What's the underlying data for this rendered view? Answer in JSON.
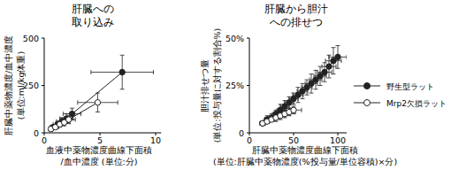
{
  "chart_data": [
    {
      "type": "line",
      "title": "肝臓への\n取り込み",
      "x_label": "血液中薬物濃度曲線下面積\n/血中濃度 (単位:分)",
      "y_label": "肝臓中薬物濃度/血中濃度\n(単位:ml/kg体重)",
      "xlim": [
        0,
        10.5
      ],
      "xticks": [
        0,
        5,
        10
      ],
      "ylim": [
        0,
        500
      ],
      "yticks": [
        0,
        250,
        500
      ],
      "series": [
        {
          "color": "#222222",
          "marker": "circle",
          "x": [
            0.8,
            1.2,
            1.6,
            2.0,
            2.5,
            7.0
          ],
          "values": [
            30,
            45,
            60,
            75,
            100,
            320
          ],
          "x_errors": [
            0.3,
            0.4,
            0.5,
            0.6,
            0.8,
            2.8
          ],
          "errors": [
            10,
            15,
            20,
            25,
            30,
            90
          ]
        },
        {
          "color": "#222222",
          "marker": "open_circle",
          "x": [
            0.6,
            1.0,
            1.4,
            1.8,
            2.2,
            4.8
          ],
          "values": [
            20,
            30,
            45,
            55,
            70,
            160
          ],
          "x_errors": [
            0.2,
            0.3,
            0.4,
            0.5,
            0.6,
            1.8
          ],
          "errors": [
            8,
            10,
            15,
            18,
            20,
            50
          ]
        }
      ]
    },
    {
      "type": "line",
      "title": "肝臓から胆汁\nへの排せつ",
      "x_label": "肝臓中薬物濃度曲線下面積\n(単位:肝臓中薬物濃度(%投与量/単位容積)×分)",
      "y_label": "胆汁排せつ量\n(単位:投与量に対する割合%)",
      "xlim": [
        0,
        110
      ],
      "xticks": [
        0,
        50,
        100
      ],
      "ylim": [
        0,
        50
      ],
      "yticks": [
        0,
        {
          "value": 25,
          "label": "25%"
        },
        {
          "value": 50,
          "label": "50%"
        }
      ],
      "legend": "right",
      "series": [
        {
          "name": "野生型ラット",
          "color": "#222222",
          "marker": "circle",
          "x": [
            15,
            20,
            25,
            30,
            35,
            40,
            45,
            50,
            55,
            60,
            65,
            70,
            75,
            80,
            85,
            90,
            95,
            100
          ],
          "values": [
            5,
            7,
            8,
            10,
            12,
            14,
            16,
            18,
            20,
            22,
            24,
            26,
            28,
            30,
            32,
            35,
            38,
            40
          ],
          "x_errors": [
            3,
            3,
            4,
            4,
            4,
            5,
            5,
            5,
            6,
            6,
            6,
            7,
            7,
            7,
            8,
            8,
            9,
            10
          ],
          "errors": [
            1,
            2,
            2,
            2,
            3,
            3,
            3,
            3,
            4,
            4,
            4,
            5,
            5,
            5,
            5,
            6,
            7,
            6
          ]
        },
        {
          "name": "Mrp2欠損ラット",
          "color": "#222222",
          "marker": "open_circle",
          "x": [
            15,
            20,
            25,
            30,
            35,
            40,
            45,
            50
          ],
          "values": [
            5,
            6,
            7,
            8,
            9,
            10,
            11,
            12
          ],
          "x_errors": [
            3,
            3,
            4,
            4,
            5,
            6,
            7,
            9
          ],
          "errors": [
            1,
            1,
            1,
            2,
            2,
            2,
            2,
            2
          ]
        }
      ]
    }
  ]
}
